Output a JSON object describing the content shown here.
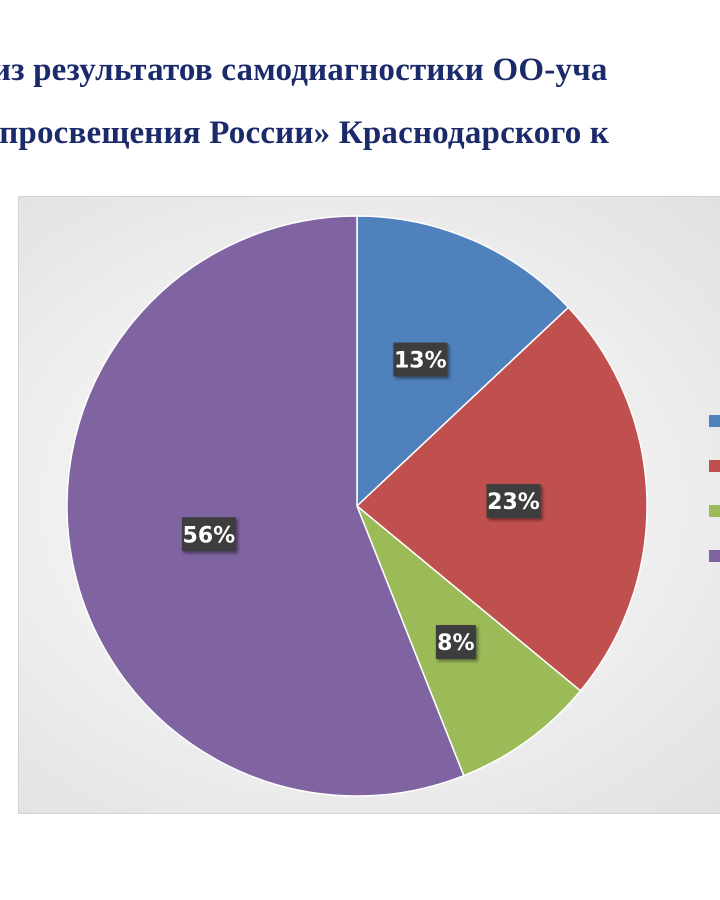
{
  "heading": {
    "line1": "из результатов самодиагностики ОО-уча",
    "line2": "нпросвещения России» Краснодарского к"
  },
  "colors": {
    "title": "#1b2a6b",
    "label_bg": "#3c3c3c",
    "series": [
      "#4f81bd",
      "#c0504d",
      "#9bbb59",
      "#8064a2"
    ]
  },
  "chart_data": {
    "type": "pie",
    "values": [
      13,
      23,
      8,
      56
    ],
    "labels": [
      "13%",
      "23%",
      "8%",
      "56%"
    ],
    "colors": [
      "#4f81bd",
      "#c0504d",
      "#9bbb59",
      "#8064a2"
    ],
    "start_angle": "12 o'clock",
    "direction": "clockwise",
    "legend_position": "right",
    "legend_entries_visible": [
      "",
      "",
      "",
      ""
    ]
  }
}
